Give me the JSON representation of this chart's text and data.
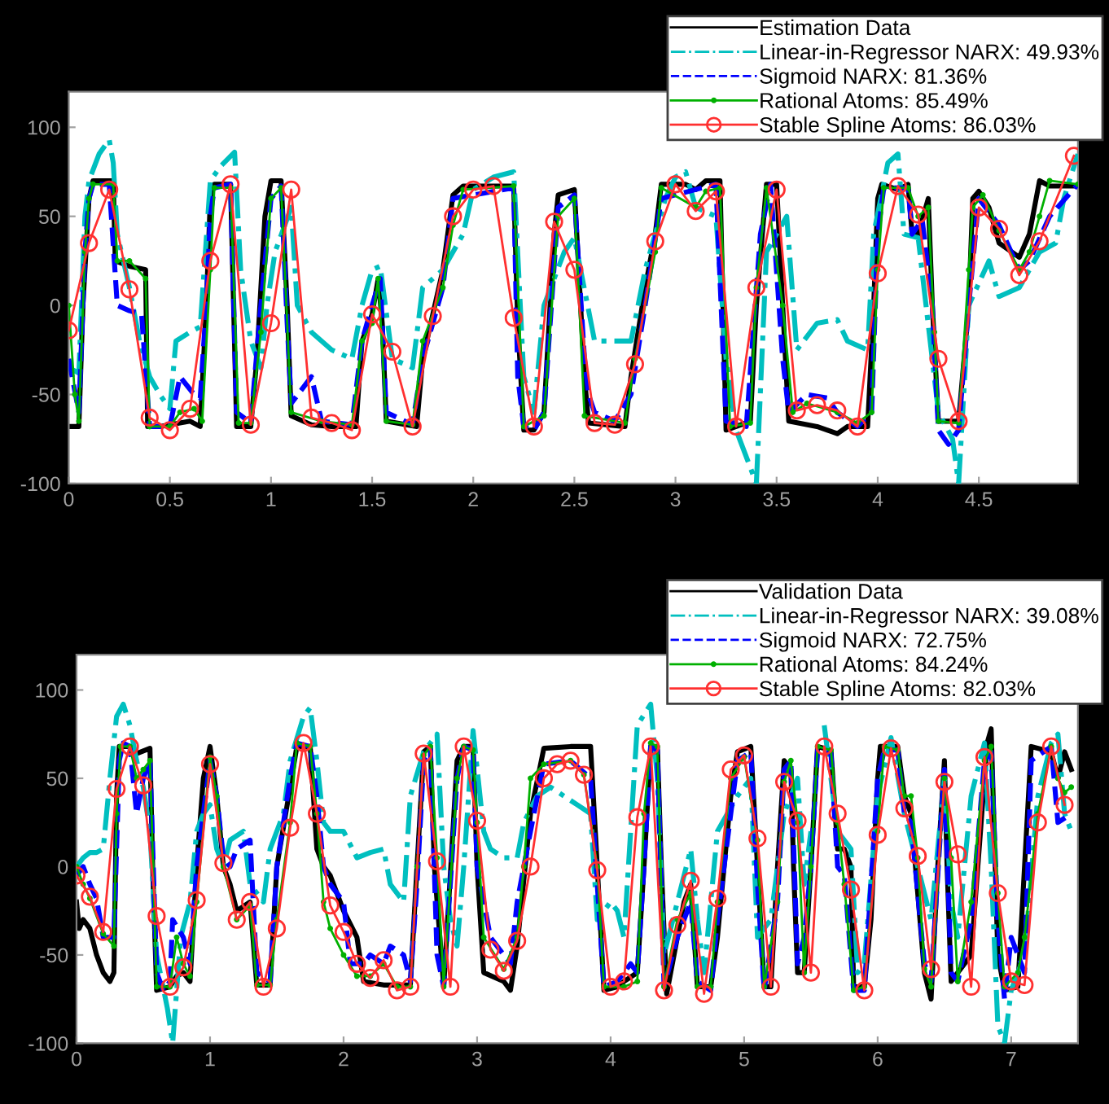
{
  "chart_data": [
    {
      "type": "line",
      "xlim": [
        0,
        4.99
      ],
      "xticks": [
        0,
        0.5,
        1,
        1.5,
        2,
        2.5,
        3,
        3.5,
        4,
        4.5
      ],
      "ylim": [
        -100,
        120
      ],
      "yticks": [
        -100,
        -50,
        0,
        50,
        100
      ],
      "grid": false,
      "legend": "top right",
      "series": [
        {
          "name": "Estimation Data",
          "color": "#000000",
          "line_style": "solid",
          "marker": "none",
          "x": [
            0,
            0.05,
            0.07,
            0.1,
            0.12,
            0.22,
            0.23,
            0.3,
            0.38,
            0.39,
            0.45,
            0.55,
            0.6,
            0.65,
            0.68,
            0.7,
            0.72,
            0.8,
            0.83,
            0.9,
            0.93,
            0.97,
            1.0,
            1.05,
            1.08,
            1.1,
            1.2,
            1.3,
            1.42,
            1.45,
            1.5,
            1.53,
            1.55,
            1.57,
            1.72,
            1.75,
            1.8,
            1.85,
            1.9,
            1.95,
            2.2,
            2.22,
            2.25,
            2.3,
            2.35,
            2.4,
            2.42,
            2.5,
            2.55,
            2.57,
            2.75,
            2.78,
            2.85,
            2.9,
            2.93,
            3.05,
            3.1,
            3.15,
            3.22,
            3.25,
            3.3,
            3.37,
            3.4,
            3.45,
            3.5,
            3.53,
            3.56,
            3.7,
            3.8,
            3.85,
            3.95,
            3.98,
            4.0,
            4.02,
            4.1,
            4.15,
            4.17,
            4.2,
            4.25,
            4.27,
            4.3,
            4.4,
            4.45,
            4.47,
            4.5,
            4.55,
            4.6,
            4.7,
            4.75,
            4.8,
            4.85,
            4.99
          ],
          "values": [
            -68,
            -68,
            0,
            60,
            70,
            70,
            25,
            22,
            20,
            -68,
            -68,
            -66,
            -65,
            -68,
            0,
            60,
            68,
            68,
            -68,
            -68,
            -30,
            50,
            70,
            70,
            0,
            -62,
            -67,
            -68,
            -68,
            -20,
            -5,
            15,
            -10,
            -65,
            -68,
            -30,
            -5,
            20,
            62,
            67,
            67,
            -10,
            -70,
            -70,
            -60,
            40,
            62,
            65,
            -40,
            -66,
            -68,
            -40,
            10,
            40,
            68,
            68,
            65,
            70,
            70,
            -70,
            -68,
            -65,
            0,
            68,
            68,
            0,
            -65,
            -68,
            -72,
            -68,
            -68,
            0,
            60,
            68,
            65,
            68,
            40,
            40,
            60,
            0,
            -65,
            -65,
            0,
            60,
            64,
            55,
            35,
            27,
            40,
            70,
            67,
            67
          ]
        },
        {
          "name": "Linear-in-Regressor NARX: 49.93%",
          "color": "#00bfbf",
          "line_style": "dashdot",
          "marker": "none",
          "x": [
            0,
            0.05,
            0.08,
            0.1,
            0.15,
            0.2,
            0.22,
            0.24,
            0.3,
            0.35,
            0.4,
            0.45,
            0.5,
            0.53,
            0.6,
            0.65,
            0.7,
            0.75,
            0.82,
            0.85,
            0.9,
            0.95,
            0.98,
            1.02,
            1.1,
            1.13,
            1.2,
            1.3,
            1.4,
            1.45,
            1.5,
            1.54,
            1.6,
            1.7,
            1.75,
            1.85,
            1.95,
            2.0,
            2.1,
            2.2,
            2.25,
            2.3,
            2.35,
            2.45,
            2.5,
            2.6,
            2.7,
            2.78,
            2.85,
            2.95,
            3.0,
            3.05,
            3.1,
            3.2,
            3.25,
            3.3,
            3.4,
            3.45,
            3.55,
            3.6,
            3.7,
            3.8,
            3.85,
            3.95,
            3.98,
            4.05,
            4.1,
            4.13,
            4.2,
            4.3,
            4.37,
            4.4,
            4.45,
            4.55,
            4.6,
            4.7,
            4.8,
            4.88,
            4.92,
            4.99
          ],
          "values": [
            -35,
            -38,
            50,
            70,
            85,
            93,
            80,
            40,
            10,
            -20,
            -40,
            -50,
            -58,
            -20,
            -15,
            -12,
            70,
            78,
            86,
            20,
            -20,
            -35,
            0,
            30,
            55,
            0,
            -15,
            -25,
            -30,
            0,
            20,
            22,
            -30,
            -35,
            10,
            20,
            40,
            65,
            72,
            75,
            -40,
            -60,
            0,
            30,
            38,
            -20,
            -20,
            -20,
            20,
            60,
            72,
            75,
            55,
            50,
            -30,
            -70,
            -100,
            30,
            50,
            -25,
            -10,
            -8,
            -20,
            -25,
            40,
            80,
            85,
            40,
            38,
            -60,
            -75,
            -100,
            0,
            25,
            5,
            10,
            30,
            35,
            60,
            85
          ]
        },
        {
          "name": "Sigmoid NARX: 81.36%",
          "color": "#0000ff",
          "line_style": "dashed",
          "marker": "none",
          "x": [
            0,
            0.05,
            0.08,
            0.1,
            0.12,
            0.2,
            0.24,
            0.3,
            0.36,
            0.4,
            0.5,
            0.55,
            0.62,
            0.65,
            0.68,
            0.7,
            0.72,
            0.8,
            0.83,
            0.9,
            0.95,
            1.0,
            1.05,
            1.08,
            1.1,
            1.2,
            1.25,
            1.4,
            1.45,
            1.5,
            1.54,
            1.57,
            1.7,
            1.75,
            1.85,
            1.9,
            2.2,
            2.22,
            2.25,
            2.3,
            2.35,
            2.42,
            2.5,
            2.55,
            2.57,
            2.6,
            2.7,
            2.78,
            2.85,
            2.93,
            3.2,
            3.25,
            3.35,
            3.42,
            3.47,
            3.53,
            3.56,
            3.65,
            3.75,
            3.8,
            3.9,
            3.97,
            4.0,
            4.03,
            4.15,
            4.17,
            4.22,
            4.27,
            4.3,
            4.35,
            4.4,
            4.45,
            4.5,
            4.6,
            4.7,
            4.75,
            4.85,
            4.99
          ],
          "values": [
            -30,
            -60,
            30,
            60,
            68,
            68,
            0,
            -3,
            -5,
            -68,
            -68,
            -40,
            -50,
            -52,
            0,
            50,
            66,
            68,
            -60,
            -66,
            0,
            60,
            67,
            -10,
            -55,
            -40,
            -65,
            -67,
            -20,
            0,
            15,
            -60,
            -67,
            -30,
            10,
            60,
            66,
            -40,
            -68,
            -70,
            -60,
            55,
            62,
            -30,
            -50,
            -60,
            -65,
            -50,
            0,
            60,
            68,
            -65,
            -68,
            40,
            68,
            -30,
            -60,
            -50,
            -52,
            -60,
            -68,
            -60,
            40,
            66,
            66,
            40,
            48,
            0,
            -70,
            -78,
            -70,
            0,
            60,
            45,
            20,
            25,
            50,
            68
          ]
        },
        {
          "name": "Rational Atoms: 85.49%",
          "color": "#00b000",
          "line_style": "solid",
          "marker": "point",
          "x": [
            0,
            0.03,
            0.05,
            0.08,
            0.1,
            0.12,
            0.22,
            0.24,
            0.3,
            0.38,
            0.4,
            0.5,
            0.55,
            0.62,
            0.66,
            0.7,
            0.72,
            0.8,
            0.84,
            0.9,
            0.95,
            1.0,
            1.05,
            1.1,
            1.25,
            1.4,
            1.45,
            1.5,
            1.53,
            1.57,
            1.7,
            1.75,
            1.85,
            1.9,
            1.95,
            2.2,
            2.25,
            2.35,
            2.42,
            2.5,
            2.55,
            2.75,
            2.8,
            2.9,
            2.93,
            3.1,
            3.15,
            3.22,
            3.27,
            3.37,
            3.4,
            3.45,
            3.53,
            3.58,
            3.65,
            3.8,
            3.9,
            3.97,
            4.0,
            4.03,
            4.15,
            4.2,
            4.25,
            4.28,
            4.3,
            4.4,
            4.45,
            4.47,
            4.52,
            4.6,
            4.7,
            4.75,
            4.8,
            4.85,
            4.99
          ],
          "values": [
            0,
            -50,
            -65,
            30,
            60,
            68,
            68,
            25,
            25,
            15,
            -68,
            -68,
            -60,
            -58,
            -65,
            20,
            66,
            66,
            -66,
            -66,
            -15,
            60,
            66,
            -60,
            -65,
            -67,
            -20,
            -10,
            15,
            -65,
            -67,
            -20,
            10,
            45,
            65,
            67,
            -68,
            -62,
            50,
            60,
            -62,
            -66,
            -30,
            30,
            66,
            55,
            64,
            66,
            -68,
            -66,
            10,
            66,
            0,
            -60,
            -55,
            -60,
            -66,
            -60,
            20,
            66,
            66,
            50,
            55,
            -15,
            -65,
            -66,
            20,
            55,
            62,
            42,
            20,
            30,
            50,
            70,
            68
          ]
        },
        {
          "name": "Stable Spline Atoms: 86.03%",
          "color": "#ff3030",
          "line_style": "solid",
          "marker": "circle",
          "x": [
            0,
            0.1,
            0.2,
            0.3,
            0.4,
            0.5,
            0.6,
            0.7,
            0.8,
            0.9,
            1.0,
            1.1,
            1.2,
            1.3,
            1.4,
            1.5,
            1.6,
            1.7,
            1.8,
            1.9,
            2.0,
            2.1,
            2.2,
            2.3,
            2.4,
            2.5,
            2.6,
            2.7,
            2.8,
            2.9,
            3.0,
            3.1,
            3.2,
            3.3,
            3.4,
            3.5,
            3.6,
            3.7,
            3.8,
            3.9,
            4.0,
            4.1,
            4.2,
            4.3,
            4.4,
            4.5,
            4.6,
            4.7,
            4.8,
            4.97
          ],
          "values": [
            -14,
            35,
            65,
            9,
            -63,
            -70,
            -58,
            25,
            68,
            -67,
            -10,
            65,
            -63,
            -66,
            -70,
            -5,
            -26,
            -68,
            -6,
            50,
            65,
            67,
            -7,
            -68,
            47,
            20,
            -66,
            -67,
            -33,
            36,
            68,
            53,
            64,
            -68,
            10,
            65,
            -59,
            -56,
            -59,
            -68,
            18,
            67,
            51,
            -30,
            -65,
            55,
            43,
            17,
            36,
            84
          ]
        }
      ]
    },
    {
      "type": "line",
      "xlim": [
        0,
        7.5
      ],
      "xticks": [
        0,
        1,
        2,
        3,
        4,
        5,
        6,
        7
      ],
      "ylim": [
        -100,
        120
      ],
      "yticks": [
        -100,
        -50,
        0,
        50,
        100
      ],
      "grid": false,
      "legend": "top right",
      "series": [
        {
          "name": "Validation Data",
          "color": "#000000",
          "line_style": "solid",
          "marker": "none",
          "x": [
            0,
            0.02,
            0.05,
            0.1,
            0.15,
            0.2,
            0.25,
            0.28,
            0.3,
            0.32,
            0.4,
            0.45,
            0.55,
            0.57,
            0.6,
            0.7,
            0.75,
            0.8,
            0.85,
            0.9,
            0.95,
            1.0,
            1.05,
            1.1,
            1.15,
            1.2,
            1.3,
            1.35,
            1.45,
            1.5,
            1.6,
            1.65,
            1.75,
            1.8,
            1.85,
            1.9,
            2.0,
            2.1,
            2.15,
            2.3,
            2.5,
            2.55,
            2.6,
            2.65,
            2.68,
            2.75,
            2.85,
            2.9,
            2.97,
            3.0,
            3.05,
            3.2,
            3.25,
            3.3,
            3.4,
            3.5,
            3.7,
            3.85,
            3.9,
            3.95,
            4.05,
            4.1,
            4.2,
            4.25,
            4.3,
            4.35,
            4.38,
            4.42,
            4.5,
            4.55,
            4.6,
            4.65,
            4.75,
            4.8,
            4.9,
            4.95,
            5.05,
            5.1,
            5.15,
            5.2,
            5.25,
            5.3,
            5.35,
            5.37,
            5.4,
            5.45,
            5.5,
            5.55,
            5.65,
            5.7,
            5.75,
            5.8,
            5.82,
            5.9,
            5.95,
            6.0,
            6.02,
            6.15,
            6.2,
            6.25,
            6.35,
            6.4,
            6.45,
            6.5,
            6.52,
            6.55,
            6.6,
            6.7,
            6.75,
            6.82,
            6.85,
            6.9,
            6.95,
            7.05,
            7.1,
            7.15,
            7.3,
            7.35,
            7.4,
            7.45
          ],
          "values": [
            -20,
            -35,
            -30,
            -35,
            -50,
            -60,
            -65,
            -60,
            40,
            68,
            68,
            64,
            67,
            0,
            -70,
            -68,
            -62,
            -60,
            -65,
            0,
            50,
            68,
            40,
            0,
            -10,
            -25,
            -20,
            -67,
            -67,
            0,
            45,
            68,
            68,
            10,
            0,
            -5,
            -25,
            -40,
            -65,
            -67,
            -67,
            0,
            65,
            68,
            0,
            -68,
            60,
            68,
            68,
            0,
            -60,
            -65,
            -70,
            -45,
            30,
            67,
            68,
            68,
            0,
            -70,
            -68,
            -65,
            -60,
            0,
            68,
            68,
            0,
            -72,
            -40,
            -20,
            -10,
            -68,
            -68,
            -40,
            40,
            65,
            68,
            0,
            -68,
            -68,
            0,
            60,
            55,
            0,
            -60,
            -60,
            0,
            68,
            66,
            10,
            10,
            0,
            -68,
            -68,
            -30,
            50,
            68,
            68,
            40,
            30,
            -60,
            -75,
            0,
            60,
            0,
            -65,
            -60,
            -50,
            0,
            70,
            78,
            -50,
            -70,
            -68,
            0,
            68,
            65,
            50,
            65,
            55
          ]
        },
        {
          "name": "Linear-in-Regressor NARX: 39.08%",
          "color": "#00bfbf",
          "line_style": "dashdot",
          "marker": "none",
          "x": [
            0,
            0.05,
            0.1,
            0.15,
            0.2,
            0.25,
            0.3,
            0.35,
            0.4,
            0.45,
            0.5,
            0.55,
            0.6,
            0.68,
            0.72,
            0.78,
            0.85,
            0.9,
            0.95,
            1.0,
            1.05,
            1.1,
            1.15,
            1.25,
            1.3,
            1.4,
            1.45,
            1.55,
            1.6,
            1.7,
            1.75,
            1.8,
            1.85,
            1.9,
            2.0,
            2.1,
            2.2,
            2.3,
            2.35,
            2.45,
            2.5,
            2.6,
            2.7,
            2.75,
            2.8,
            2.85,
            2.9,
            2.97,
            3.05,
            3.1,
            3.2,
            3.3,
            3.35,
            3.45,
            3.55,
            3.65,
            3.75,
            3.85,
            3.9,
            4.0,
            4.05,
            4.1,
            4.2,
            4.3,
            4.35,
            4.4,
            4.5,
            4.6,
            4.65,
            4.7,
            4.8,
            4.95,
            5.05,
            5.1,
            5.2,
            5.3,
            5.4,
            5.45,
            5.5,
            5.55,
            5.6,
            5.7,
            5.8,
            5.85,
            5.9,
            6.0,
            6.1,
            6.2,
            6.3,
            6.4,
            6.5,
            6.55,
            6.6,
            6.7,
            6.8,
            6.85,
            6.9,
            6.95,
            7.0,
            7.1,
            7.2,
            7.3,
            7.35,
            7.4,
            7.45
          ],
          "values": [
            0,
            5,
            8,
            8,
            10,
            50,
            85,
            92,
            80,
            60,
            45,
            20,
            -50,
            -80,
            -100,
            -40,
            -20,
            20,
            30,
            35,
            10,
            0,
            15,
            20,
            -10,
            -20,
            10,
            30,
            60,
            85,
            90,
            60,
            25,
            20,
            20,
            5,
            8,
            10,
            -10,
            -20,
            40,
            65,
            75,
            0,
            -30,
            -45,
            0,
            77,
            20,
            10,
            5,
            5,
            25,
            40,
            45,
            40,
            35,
            30,
            -30,
            -20,
            -25,
            -40,
            80,
            92,
            50,
            -50,
            -20,
            10,
            -30,
            -60,
            20,
            40,
            50,
            -40,
            -30,
            30,
            50,
            -10,
            20,
            null,
            80,
            20,
            10,
            -60,
            -55,
            40,
            73,
            30,
            0,
            -30,
            50,
            -20,
            -40,
            40,
            70,
            0,
            -90,
            -100,
            -70,
            -50,
            40,
            70,
            75,
            30,
            20
          ]
        },
        {
          "name": "Sigmoid NARX: 72.75%",
          "color": "#0000ff",
          "line_style": "dashed",
          "marker": "none",
          "x": [
            0,
            0.05,
            0.1,
            0.15,
            0.2,
            0.28,
            0.32,
            0.35,
            0.4,
            0.45,
            0.5,
            0.55,
            0.6,
            0.65,
            0.7,
            0.72,
            0.8,
            0.85,
            0.9,
            1.0,
            1.05,
            1.1,
            1.15,
            1.2,
            1.3,
            1.35,
            1.45,
            1.5,
            1.6,
            1.65,
            1.75,
            1.8,
            1.85,
            1.9,
            2.0,
            2.05,
            2.15,
            2.2,
            2.3,
            2.35,
            2.45,
            2.5,
            2.55,
            2.6,
            2.65,
            2.7,
            2.75,
            2.85,
            2.9,
            2.97,
            3.0,
            3.1,
            3.2,
            3.25,
            3.3,
            3.4,
            3.5,
            3.7,
            3.85,
            3.9,
            3.95,
            4.05,
            4.15,
            4.2,
            4.25,
            4.3,
            4.35,
            4.4,
            4.5,
            4.6,
            4.65,
            4.75,
            4.8,
            4.95,
            5.05,
            5.1,
            5.15,
            5.25,
            5.3,
            5.35,
            5.4,
            5.45,
            5.5,
            5.55,
            5.65,
            5.7,
            5.75,
            5.82,
            5.9,
            6.0,
            6.05,
            6.15,
            6.2,
            6.25,
            6.35,
            6.4,
            6.5,
            6.55,
            6.6,
            6.7,
            6.8,
            6.85,
            6.9,
            6.95,
            7.0,
            7.1,
            7.15,
            7.3,
            7.35,
            7.45
          ],
          "values": [
            -5,
            0,
            -10,
            -18,
            -40,
            -40,
            60,
            70,
            68,
            30,
            50,
            60,
            -60,
            -70,
            -65,
            -30,
            -40,
            -55,
            0,
            60,
            40,
            5,
            0,
            10,
            15,
            -60,
            -65,
            0,
            50,
            70,
            68,
            40,
            0,
            -10,
            -20,
            -55,
            -55,
            -50,
            -55,
            -45,
            -50,
            -65,
            -10,
            60,
            68,
            -50,
            -68,
            50,
            68,
            66,
            0,
            -40,
            -50,
            -55,
            -20,
            20,
            58,
            60,
            50,
            -10,
            -68,
            -65,
            -55,
            -60,
            0,
            68,
            66,
            -68,
            -40,
            -20,
            -65,
            -70,
            -30,
            60,
            65,
            -10,
            -70,
            -20,
            55,
            60,
            -55,
            -40,
            0,
            66,
            64,
            0,
            -5,
            -70,
            -70,
            50,
            66,
            66,
            30,
            25,
            -55,
            -65,
            55,
            -60,
            -65,
            -30,
            60,
            65,
            -30,
            -75,
            -40,
            -60,
            60,
            68,
            25,
            30
          ]
        },
        {
          "name": "Rational Atoms: 84.24%",
          "color": "#00b000",
          "line_style": "solid",
          "marker": "point",
          "x": [
            0,
            0.05,
            0.1,
            0.2,
            0.28,
            0.3,
            0.33,
            0.4,
            0.45,
            0.5,
            0.55,
            0.6,
            0.7,
            0.75,
            0.8,
            0.85,
            0.9,
            1.0,
            1.05,
            1.1,
            1.2,
            1.3,
            1.35,
            1.45,
            1.5,
            1.6,
            1.65,
            1.75,
            1.8,
            1.85,
            1.9,
            2.0,
            2.1,
            2.2,
            2.3,
            2.4,
            2.5,
            2.55,
            2.6,
            2.65,
            2.7,
            2.75,
            2.85,
            2.9,
            2.97,
            3.0,
            3.05,
            3.2,
            3.3,
            3.35,
            3.4,
            3.5,
            3.7,
            3.8,
            3.9,
            3.95,
            4.1,
            4.2,
            4.25,
            4.3,
            4.35,
            4.4,
            4.5,
            4.6,
            4.65,
            4.75,
            4.8,
            4.9,
            5.0,
            5.1,
            5.15,
            5.25,
            5.3,
            5.35,
            5.4,
            5.45,
            5.5,
            5.55,
            5.65,
            5.7,
            5.75,
            5.82,
            5.9,
            6.0,
            6.05,
            6.15,
            6.2,
            6.25,
            6.3,
            6.35,
            6.4,
            6.5,
            6.55,
            6.6,
            6.7,
            6.8,
            6.85,
            6.9,
            6.95,
            7.05,
            7.1,
            7.2,
            7.3,
            7.35,
            7.4,
            7.45
          ],
          "values": [
            0,
            -10,
            -18,
            -38,
            -45,
            30,
            68,
            68,
            50,
            55,
            60,
            -68,
            -68,
            -40,
            -55,
            -62,
            -20,
            62,
            40,
            0,
            -30,
            -22,
            -67,
            -67,
            -30,
            25,
            70,
            68,
            30,
            -20,
            -35,
            -50,
            -62,
            -62,
            -55,
            -68,
            -68,
            0,
            63,
            68,
            5,
            -68,
            50,
            68,
            66,
            25,
            -40,
            -58,
            -40,
            0,
            50,
            58,
            60,
            52,
            0,
            -68,
            -68,
            -65,
            30,
            70,
            68,
            -68,
            -30,
            -15,
            -68,
            -68,
            -20,
            50,
            62,
            15,
            -68,
            -20,
            48,
            60,
            25,
            -60,
            0,
            68,
            66,
            25,
            -10,
            -70,
            -68,
            20,
            68,
            66,
            40,
            40,
            5,
            -58,
            -68,
            50,
            5,
            -65,
            -20,
            60,
            68,
            -15,
            -68,
            -60,
            -40,
            30,
            68,
            50,
            42,
            45
          ]
        },
        {
          "name": "Stable Spline Atoms: 82.03%",
          "color": "#ff3030",
          "line_style": "solid",
          "marker": "circle",
          "x": [
            0,
            0.1,
            0.2,
            0.3,
            0.4,
            0.5,
            0.6,
            0.7,
            0.8,
            0.9,
            1.0,
            1.1,
            1.2,
            1.3,
            1.4,
            1.5,
            1.6,
            1.7,
            1.8,
            1.9,
            2.0,
            2.1,
            2.2,
            2.3,
            2.4,
            2.5,
            2.6,
            2.7,
            2.8,
            2.9,
            3.0,
            3.1,
            3.2,
            3.3,
            3.4,
            3.5,
            3.6,
            3.7,
            3.8,
            3.9,
            4.0,
            4.1,
            4.2,
            4.3,
            4.4,
            4.5,
            4.6,
            4.7,
            4.8,
            4.9,
            5.0,
            5.1,
            5.2,
            5.3,
            5.4,
            5.5,
            5.6,
            5.7,
            5.8,
            5.9,
            6.0,
            6.1,
            6.2,
            6.3,
            6.4,
            6.5,
            6.6,
            6.7,
            6.8,
            6.9,
            7.0,
            7.1,
            7.2,
            7.3,
            7.4
          ],
          "values": [
            -5,
            -17,
            -37,
            44,
            68,
            46,
            -28,
            -68,
            -57,
            -19,
            58,
            2,
            -30,
            -20,
            -68,
            -35,
            22,
            70,
            30,
            -22,
            -37,
            -55,
            -63,
            -53,
            -70,
            -68,
            64,
            3,
            -68,
            68,
            26,
            -47,
            -59,
            -42,
            0,
            50,
            58,
            60,
            52,
            -2,
            -68,
            -65,
            28,
            68,
            -70,
            -33,
            -8,
            -72,
            -18,
            55,
            63,
            16,
            -68,
            48,
            26,
            -60,
            68,
            30,
            -13,
            -70,
            18,
            67,
            33,
            6,
            -58,
            48,
            7,
            -68,
            62,
            -15,
            -65,
            -67,
            25,
            68,
            35
          ]
        }
      ]
    }
  ]
}
